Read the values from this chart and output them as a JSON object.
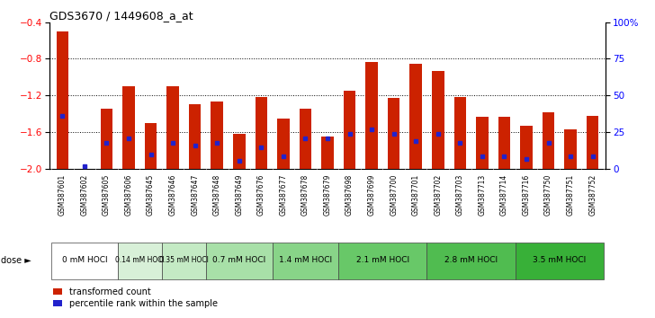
{
  "title": "GDS3670 / 1449608_a_at",
  "samples": [
    "GSM387601",
    "GSM387602",
    "GSM387605",
    "GSM387606",
    "GSM387645",
    "GSM387646",
    "GSM387647",
    "GSM387648",
    "GSM387649",
    "GSM387676",
    "GSM387677",
    "GSM387678",
    "GSM387679",
    "GSM387698",
    "GSM387699",
    "GSM387700",
    "GSM387701",
    "GSM387702",
    "GSM387703",
    "GSM387713",
    "GSM387714",
    "GSM387716",
    "GSM387750",
    "GSM387751",
    "GSM387752"
  ],
  "bar_values": [
    -0.5,
    -2.0,
    -1.35,
    -1.1,
    -1.5,
    -1.1,
    -1.3,
    -1.27,
    -1.62,
    -1.22,
    -1.45,
    -1.35,
    -1.65,
    -1.15,
    -0.83,
    -1.23,
    -0.85,
    -0.93,
    -1.22,
    -1.43,
    -1.43,
    -1.53,
    -1.38,
    -1.57,
    -1.42
  ],
  "percentile_values": [
    -1.42,
    -1.97,
    -1.72,
    -1.67,
    -1.85,
    -1.72,
    -1.75,
    -1.72,
    -1.92,
    -1.77,
    -1.87,
    -1.67,
    -1.67,
    -1.62,
    -1.57,
    -1.62,
    -1.7,
    -1.62,
    -1.72,
    -1.87,
    -1.87,
    -1.9,
    -1.72,
    -1.87,
    -1.87
  ],
  "dose_groups": [
    {
      "label": "0 mM HOCl",
      "start": 0,
      "end": 3,
      "color": "#ffffff"
    },
    {
      "label": "0.14 mM HOCl",
      "start": 3,
      "end": 5,
      "color": "#d8f0d8"
    },
    {
      "label": "0.35 mM HOCl",
      "start": 5,
      "end": 7,
      "color": "#c4eac4"
    },
    {
      "label": "0.7 mM HOCl",
      "start": 7,
      "end": 10,
      "color": "#a8e0a8"
    },
    {
      "label": "1.4 mM HOCl",
      "start": 10,
      "end": 13,
      "color": "#88d488"
    },
    {
      "label": "2.1 mM HOCl",
      "start": 13,
      "end": 17,
      "color": "#68c868"
    },
    {
      "label": "2.8 mM HOCl",
      "start": 17,
      "end": 21,
      "color": "#50bc50"
    },
    {
      "label": "3.5 mM HOCl",
      "start": 21,
      "end": 25,
      "color": "#38b038"
    }
  ],
  "ylim_left": [
    -2.0,
    -0.4
  ],
  "yticks_left": [
    -2.0,
    -1.6,
    -1.2,
    -0.8,
    -0.4
  ],
  "yticks_right": [
    0,
    25,
    50,
    75,
    100
  ],
  "bar_color": "#cc2200",
  "dot_color": "#2222cc",
  "plot_bg": "#ffffff",
  "legend1": "transformed count",
  "legend2": "percentile rank within the sample"
}
